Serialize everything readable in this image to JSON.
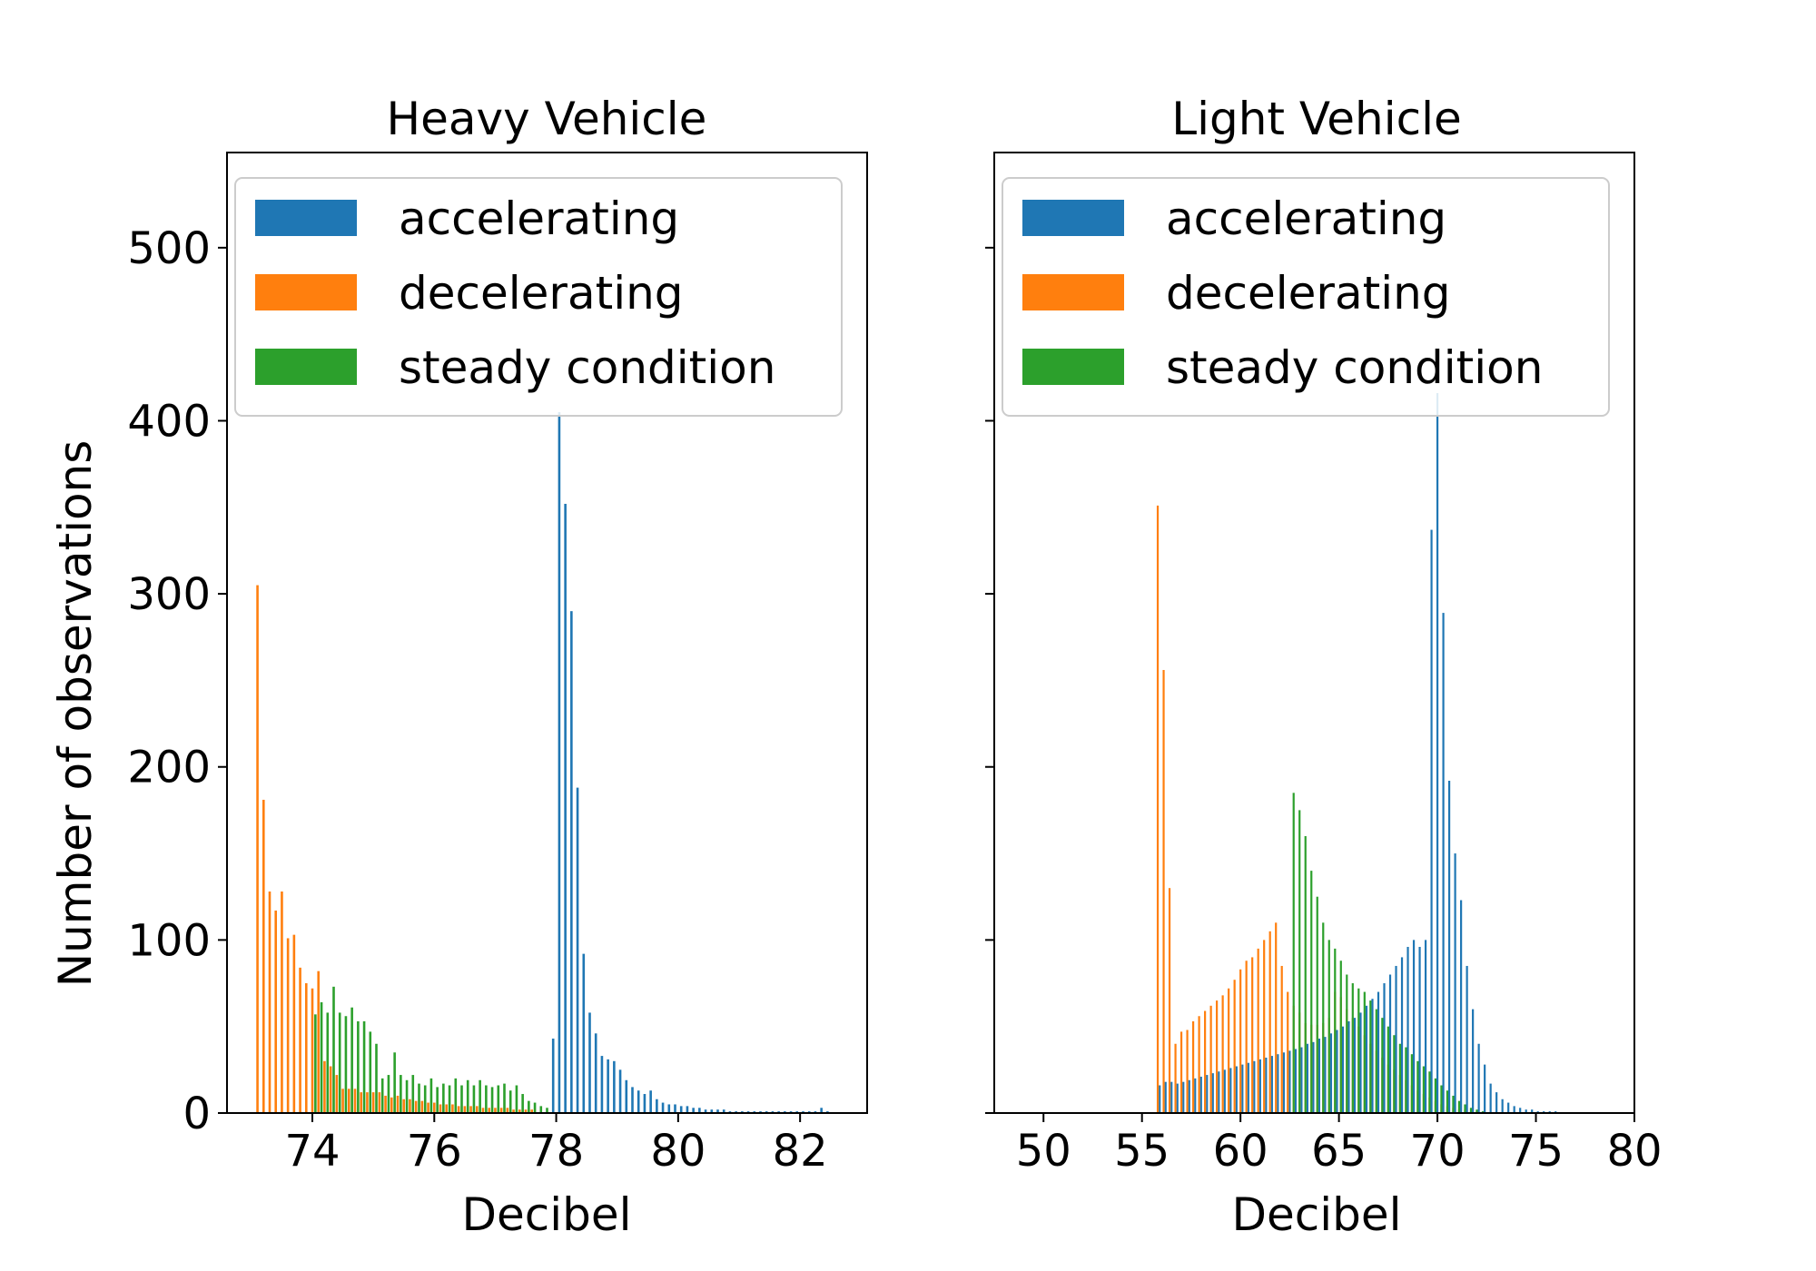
{
  "chart_data": [
    {
      "type": "bar",
      "title": "Heavy Vehicle",
      "xlabel": "Decibel",
      "ylabel": "Number of observations",
      "xlim": [
        72.6,
        83.1
      ],
      "ylim": [
        0,
        555
      ],
      "xticks": [
        74,
        76,
        78,
        80,
        82
      ],
      "yticks": [
        0,
        100,
        200,
        300,
        400,
        500
      ],
      "legend": {
        "placement": "top-right",
        "entries": [
          "accelerating",
          "decelerating",
          "steady condition"
        ]
      },
      "grid": false,
      "series": [
        {
          "name": "accelerating",
          "color": "#1f77b4",
          "x": [
            77.95,
            78.05,
            78.15,
            78.25,
            78.35,
            78.45,
            78.55,
            78.65,
            78.75,
            78.85,
            78.95,
            79.05,
            79.15,
            79.25,
            79.35,
            79.45,
            79.55,
            79.65,
            79.75,
            79.85,
            79.95,
            80.05,
            80.15,
            80.25,
            80.35,
            80.45,
            80.55,
            80.65,
            80.75,
            80.85,
            80.95,
            81.05,
            81.15,
            81.25,
            81.35,
            81.45,
            81.55,
            81.65,
            81.75,
            81.85,
            81.95,
            82.05,
            82.15,
            82.25,
            82.35,
            82.45
          ],
          "values": [
            43,
            405,
            352,
            290,
            188,
            92,
            58,
            46,
            33,
            31,
            30,
            25,
            19,
            15,
            13,
            11,
            13,
            8,
            6,
            5,
            5,
            4,
            4,
            3,
            3,
            2,
            2,
            2,
            2,
            1,
            1,
            1,
            1,
            1,
            1,
            1,
            1,
            1,
            1,
            1,
            1,
            1,
            1,
            1,
            3,
            1
          ]
        },
        {
          "name": "decelerating",
          "color": "#ff7f0e",
          "x": [
            73.1,
            73.2,
            73.3,
            73.4,
            73.5,
            73.6,
            73.7,
            73.8,
            73.9,
            74.0,
            74.1,
            74.2,
            74.3,
            74.4,
            74.5,
            74.6,
            74.7,
            74.8,
            74.9,
            75.0,
            75.1,
            75.2,
            75.3,
            75.4,
            75.5,
            75.6,
            75.7,
            75.8,
            75.9,
            76.0,
            76.1,
            76.2,
            76.3,
            76.4,
            76.5,
            76.6,
            76.7,
            76.8,
            76.9,
            77.0,
            77.1,
            77.2,
            77.3,
            77.4,
            77.5,
            77.6
          ],
          "values": [
            305,
            181,
            128,
            117,
            128,
            101,
            103,
            84,
            75,
            72,
            82,
            30,
            27,
            22,
            14,
            14,
            14,
            12,
            12,
            12,
            12,
            10,
            9,
            10,
            8,
            8,
            7,
            7,
            6,
            6,
            5,
            5,
            5,
            4,
            4,
            4,
            4,
            3,
            3,
            3,
            3,
            3,
            2,
            2,
            2,
            2
          ]
        },
        {
          "name": "steady condition",
          "color": "#2ca02c",
          "x": [
            74.05,
            74.15,
            74.25,
            74.35,
            74.45,
            74.55,
            74.65,
            74.75,
            74.85,
            74.95,
            75.05,
            75.15,
            75.25,
            75.35,
            75.45,
            75.55,
            75.65,
            75.75,
            75.85,
            75.95,
            76.05,
            76.15,
            76.25,
            76.35,
            76.45,
            76.55,
            76.65,
            76.75,
            76.85,
            76.95,
            77.05,
            77.15,
            77.25,
            77.35,
            77.45,
            77.55,
            77.65,
            77.75,
            77.85
          ],
          "values": [
            57,
            64,
            58,
            73,
            58,
            56,
            61,
            53,
            53,
            47,
            40,
            20,
            22,
            35,
            22,
            19,
            22,
            17,
            16,
            20,
            15,
            17,
            16,
            20,
            16,
            19,
            16,
            19,
            16,
            15,
            16,
            17,
            13,
            16,
            11,
            7,
            6,
            4,
            3
          ]
        }
      ]
    },
    {
      "type": "bar",
      "title": "Light Vehicle",
      "xlabel": "Decibel",
      "ylabel": "",
      "xlim": [
        47.5,
        80
      ],
      "ylim": [
        0,
        555
      ],
      "xticks": [
        50,
        55,
        60,
        65,
        70,
        75,
        80
      ],
      "yticks": [
        0,
        100,
        200,
        300,
        400,
        500
      ],
      "legend": {
        "placement": "top-right",
        "entries": [
          "accelerating",
          "decelerating",
          "steady condition"
        ]
      },
      "grid": false,
      "series": [
        {
          "name": "accelerating",
          "color": "#1f77b4",
          "x": [
            55.9,
            56.2,
            56.5,
            56.8,
            57.1,
            57.4,
            57.7,
            58.0,
            58.3,
            58.6,
            58.9,
            59.2,
            59.5,
            59.8,
            60.1,
            60.4,
            60.7,
            61.0,
            61.3,
            61.6,
            61.9,
            62.2,
            62.5,
            62.8,
            63.1,
            63.4,
            63.7,
            64.0,
            64.3,
            64.6,
            64.9,
            65.2,
            65.5,
            65.8,
            66.1,
            66.4,
            66.7,
            67.0,
            67.3,
            67.6,
            67.9,
            68.2,
            68.5,
            68.8,
            69.1,
            69.4,
            69.7,
            70.0,
            70.3,
            70.6,
            70.9,
            71.2,
            71.5,
            71.8,
            72.1,
            72.4,
            72.7,
            73.0,
            73.3,
            73.6,
            73.9,
            74.2,
            74.5,
            74.8,
            75.1,
            75.4,
            75.7,
            76.0
          ],
          "values": [
            16,
            18,
            18,
            17,
            18,
            19,
            20,
            21,
            22,
            23,
            24,
            25,
            26,
            27,
            28,
            29,
            30,
            31,
            32,
            33,
            34,
            35,
            36,
            37,
            38,
            40,
            41,
            43,
            44,
            46,
            48,
            50,
            53,
            55,
            58,
            62,
            66,
            70,
            75,
            80,
            85,
            90,
            96,
            100,
            96,
            100,
            337,
            416,
            289,
            192,
            150,
            123,
            85,
            60,
            40,
            28,
            17,
            12,
            8,
            6,
            4,
            3,
            2,
            2,
            1,
            1,
            1,
            1
          ]
        },
        {
          "name": "decelerating",
          "color": "#ff7f0e",
          "x": [
            55.8,
            56.1,
            56.4,
            56.7,
            57.0,
            57.3,
            57.6,
            57.9,
            58.2,
            58.5,
            58.8,
            59.1,
            59.4,
            59.7,
            60.0,
            60.3,
            60.6,
            60.9,
            61.2,
            61.5,
            61.8,
            62.1,
            62.4,
            62.7,
            63.0,
            63.3,
            63.6,
            63.9,
            64.2,
            64.5,
            64.8,
            65.1,
            65.4,
            65.7,
            66.0,
            66.3,
            66.6,
            66.9,
            67.2,
            67.5,
            67.8,
            68.1,
            68.4,
            68.7,
            69.0,
            69.3,
            69.6,
            69.9,
            70.2,
            70.5,
            70.8,
            71.1,
            71.4,
            71.7,
            72.0
          ],
          "values": [
            351,
            256,
            130,
            40,
            47,
            48,
            53,
            56,
            59,
            62,
            65,
            68,
            72,
            77,
            83,
            88,
            90,
            95,
            100,
            105,
            110,
            85,
            70,
            62,
            58,
            52,
            51,
            51,
            52,
            55,
            70,
            67,
            60,
            55,
            50,
            45,
            40,
            36,
            32,
            28,
            25,
            22,
            19,
            16,
            13,
            11,
            9,
            7,
            5,
            4,
            3,
            2,
            2,
            1,
            1
          ]
        },
        {
          "name": "steady condition",
          "color": "#2ca02c",
          "x": [
            62.7,
            63.0,
            63.3,
            63.6,
            63.9,
            64.2,
            64.5,
            64.8,
            65.1,
            65.4,
            65.7,
            66.0,
            66.3,
            66.6,
            66.9,
            67.2,
            67.5,
            67.8,
            68.1,
            68.4,
            68.7,
            69.0,
            69.3,
            69.6,
            69.9,
            70.2,
            70.5,
            70.8,
            71.1,
            71.4,
            71.7,
            72.0,
            72.3
          ],
          "values": [
            185,
            175,
            160,
            140,
            125,
            110,
            100,
            95,
            88,
            80,
            75,
            72,
            70,
            65,
            60,
            55,
            50,
            45,
            40,
            38,
            34,
            30,
            27,
            24,
            20,
            16,
            13,
            10,
            7,
            5,
            3,
            2,
            1
          ]
        }
      ]
    }
  ]
}
